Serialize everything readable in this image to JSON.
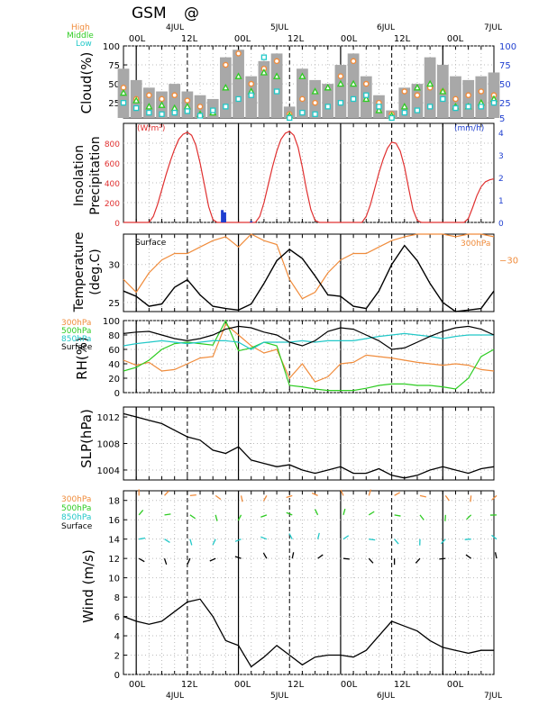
{
  "header": {
    "title": "GSM",
    "at_symbol": "@",
    "cloud_legend": [
      "High",
      "Middle",
      "Low"
    ],
    "rh_legend": [
      "300hPa",
      "500hPa",
      "850hPa",
      "Surface"
    ],
    "wind_legend": [
      "300hPa",
      "500hPa",
      "850hPa",
      "Surface"
    ]
  },
  "colors": {
    "high": "#f08c3c",
    "middle": "#2ecc22",
    "low": "#22c8c8",
    "surface": "#000000",
    "insolation": "#e03030",
    "precip": "#1f3fd0",
    "cloud_bar": "#a8a8a8"
  },
  "time_axis": {
    "hour_labels_top": [
      "00L",
      "12L",
      "00L",
      "12L",
      "00L",
      "12L",
      "00L"
    ],
    "hour_labels_bottom": [
      "00L",
      "12L",
      "00L",
      "12L",
      "00L",
      "12L",
      "00L"
    ],
    "day_labels_top": [
      "4JUL",
      "5JUL",
      "6JUL",
      "7JUL"
    ],
    "day_labels_bottom": [
      "4JUL",
      "5JUL",
      "6JUL",
      "7JUL"
    ],
    "range_hours": [
      -3,
      84
    ]
  },
  "chart_data": [
    {
      "id": "cloud",
      "type": "bar",
      "ylabel": "Cloud(%)",
      "ylim": [
        5,
        100
      ],
      "yticks_left": [
        25,
        50,
        75,
        100
      ],
      "yticks_right": [
        5,
        25,
        50,
        75,
        100
      ],
      "x": [
        -3,
        0,
        3,
        6,
        9,
        12,
        15,
        18,
        21,
        24,
        27,
        30,
        33,
        36,
        39,
        42,
        45,
        48,
        51,
        54,
        57,
        60,
        63,
        66,
        69,
        72,
        75,
        78,
        81,
        84
      ],
      "total": [
        70,
        55,
        45,
        40,
        50,
        40,
        35,
        30,
        85,
        95,
        60,
        80,
        90,
        20,
        70,
        55,
        50,
        75,
        90,
        60,
        35,
        15,
        45,
        50,
        85,
        75,
        60,
        55,
        60,
        65
      ],
      "series": [
        {
          "name": "High",
          "values": [
            45,
            30,
            35,
            30,
            35,
            28,
            20,
            15,
            75,
            90,
            50,
            70,
            80,
            10,
            30,
            25,
            20,
            60,
            80,
            50,
            25,
            10,
            40,
            35,
            45,
            40,
            30,
            35,
            40,
            35
          ]
        },
        {
          "name": "Middle",
          "values": [
            38,
            28,
            20,
            22,
            18,
            20,
            10,
            12,
            45,
            60,
            40,
            65,
            60,
            8,
            60,
            40,
            45,
            50,
            50,
            30,
            15,
            8,
            20,
            45,
            50,
            40,
            20,
            20,
            25,
            30
          ]
        },
        {
          "name": "Low",
          "values": [
            25,
            18,
            12,
            10,
            12,
            14,
            8,
            15,
            20,
            30,
            35,
            85,
            40,
            5,
            12,
            10,
            20,
            25,
            30,
            35,
            20,
            5,
            12,
            15,
            20,
            30,
            18,
            20,
            20,
            25
          ]
        }
      ]
    },
    {
      "id": "insolation",
      "type": "line",
      "ylabel": "Insolation\nPrecipitation",
      "unit_left": "(W/m²)",
      "unit_right": "(mm/h)",
      "ylim": [
        0,
        1000
      ],
      "yticks_left": [
        0,
        200,
        400,
        600,
        800
      ],
      "yticks_right": [
        0,
        1,
        2,
        3,
        4
      ],
      "ylim_right": [
        0,
        4.4
      ],
      "x": [
        -3,
        0,
        1,
        2,
        3,
        4,
        5,
        6,
        7,
        8,
        9,
        10,
        11,
        12,
        13,
        14,
        15,
        16,
        17,
        18,
        19,
        20,
        21,
        24,
        25,
        26,
        27,
        28,
        29,
        30,
        31,
        32,
        33,
        34,
        35,
        36,
        37,
        38,
        39,
        40,
        41,
        42,
        43,
        44,
        45,
        48,
        49,
        50,
        51,
        52,
        53,
        54,
        55,
        56,
        57,
        58,
        59,
        60,
        61,
        62,
        63,
        64,
        65,
        66,
        67,
        68,
        69,
        72,
        73,
        74,
        75,
        76,
        77,
        78,
        79,
        80,
        81,
        82,
        83,
        84
      ],
      "y": [
        0,
        0,
        0,
        0,
        0,
        60,
        180,
        330,
        480,
        620,
        740,
        840,
        890,
        910,
        880,
        780,
        600,
        380,
        160,
        30,
        0,
        0,
        0,
        0,
        0,
        0,
        0,
        0,
        60,
        200,
        380,
        560,
        720,
        840,
        900,
        920,
        880,
        760,
        560,
        330,
        130,
        20,
        0,
        0,
        0,
        0,
        0,
        0,
        0,
        0,
        0,
        60,
        180,
        340,
        500,
        640,
        750,
        810,
        800,
        720,
        560,
        340,
        130,
        20,
        0,
        0,
        0,
        0,
        0,
        0,
        0,
        0,
        0,
        40,
        150,
        270,
        360,
        410,
        430,
        440
      ],
      "precip": [
        {
          "x": 20.2,
          "mm": 0.55
        },
        {
          "x": 20.8,
          "mm": 0.45
        },
        {
          "x": 27,
          "mm": 0.05
        }
      ]
    },
    {
      "id": "temperature",
      "type": "line",
      "ylabel": "Temperature\n(deg.C)",
      "surface_label": "Surface",
      "label_300": "300hPa",
      "yticks_left": [
        25,
        30
      ],
      "ylim": [
        23.8,
        34
      ],
      "yticks_right": [
        -30
      ],
      "ylim_right": [
        -34,
        -28
      ],
      "series": [
        {
          "name": "Surface",
          "x": [
            -3,
            0,
            3,
            6,
            9,
            12,
            15,
            18,
            21,
            24,
            27,
            30,
            33,
            36,
            39,
            42,
            45,
            48,
            51,
            54,
            57,
            60,
            63,
            66,
            69,
            72,
            75,
            78,
            81,
            84
          ],
          "y": [
            26.5,
            25.8,
            24.5,
            24.8,
            27.0,
            28.0,
            26.0,
            24.5,
            24.2,
            24.0,
            24.8,
            27.5,
            30.5,
            32.0,
            30.8,
            28.5,
            26.0,
            25.8,
            24.5,
            24.2,
            26.5,
            30.0,
            32.5,
            30.5,
            27.5,
            25.0,
            23.8,
            24.0,
            24.2,
            26.5
          ]
        },
        {
          "name": "300hPa",
          "x": [
            -3,
            0,
            3,
            6,
            9,
            12,
            15,
            18,
            21,
            24,
            27,
            30,
            33,
            36,
            39,
            42,
            45,
            48,
            51,
            54,
            57,
            60,
            63,
            66,
            69,
            72,
            75,
            78,
            81,
            84
          ],
          "y": [
            -31.5,
            -32.5,
            -31.0,
            -30.0,
            -29.5,
            -29.5,
            -29.0,
            -28.5,
            -28.2,
            -29.0,
            -28.0,
            -28.5,
            -28.8,
            -31.5,
            -33.0,
            -32.5,
            -31.0,
            -30.0,
            -29.5,
            -29.5,
            -29.0,
            -28.5,
            -28.2,
            -28.0,
            -28.0,
            -28.0,
            -28.2,
            -28.0,
            -28.0,
            -28.2
          ]
        }
      ]
    },
    {
      "id": "rh",
      "type": "line",
      "ylabel": "RH(%)",
      "ylim": [
        0,
        100
      ],
      "yticks_left": [
        0,
        20,
        40,
        60,
        80,
        100
      ],
      "series": [
        {
          "name": "300hPa",
          "x": [
            -3,
            0,
            3,
            6,
            9,
            12,
            15,
            18,
            21,
            24,
            27,
            30,
            33,
            36,
            39,
            42,
            45,
            48,
            51,
            54,
            57,
            60,
            63,
            66,
            69,
            72,
            75,
            78,
            81,
            84
          ],
          "y": [
            45,
            38,
            42,
            30,
            32,
            40,
            48,
            50,
            95,
            80,
            65,
            55,
            60,
            20,
            40,
            15,
            22,
            40,
            42,
            52,
            50,
            48,
            45,
            42,
            40,
            38,
            40,
            38,
            32,
            30
          ]
        },
        {
          "name": "500hPa",
          "x": [
            -3,
            0,
            3,
            6,
            9,
            12,
            15,
            18,
            21,
            24,
            27,
            30,
            33,
            36,
            39,
            42,
            45,
            48,
            51,
            54,
            57,
            60,
            63,
            66,
            69,
            72,
            75,
            78,
            81,
            84
          ],
          "y": [
            30,
            35,
            45,
            60,
            68,
            70,
            68,
            66,
            100,
            58,
            62,
            70,
            65,
            10,
            8,
            5,
            3,
            3,
            3,
            6,
            10,
            12,
            12,
            10,
            10,
            8,
            5,
            20,
            50,
            60
          ]
        },
        {
          "name": "850hPa",
          "x": [
            -3,
            0,
            3,
            6,
            9,
            12,
            15,
            18,
            21,
            24,
            27,
            30,
            33,
            36,
            39,
            42,
            45,
            48,
            51,
            54,
            57,
            60,
            63,
            66,
            69,
            72,
            75,
            78,
            81,
            84
          ],
          "y": [
            65,
            68,
            70,
            72,
            70,
            68,
            70,
            72,
            72,
            70,
            60,
            70,
            70,
            70,
            72,
            70,
            72,
            72,
            72,
            75,
            78,
            80,
            82,
            80,
            78,
            75,
            78,
            80,
            80,
            80
          ]
        },
        {
          "name": "Surface",
          "x": [
            -3,
            0,
            3,
            6,
            9,
            12,
            15,
            18,
            21,
            24,
            27,
            30,
            33,
            36,
            39,
            42,
            45,
            48,
            51,
            54,
            57,
            60,
            63,
            66,
            69,
            72,
            75,
            78,
            81,
            84
          ],
          "y": [
            82,
            84,
            85,
            80,
            75,
            72,
            75,
            80,
            88,
            92,
            90,
            84,
            80,
            70,
            65,
            72,
            85,
            90,
            88,
            80,
            72,
            60,
            62,
            70,
            78,
            85,
            90,
            92,
            88,
            80
          ]
        }
      ]
    },
    {
      "id": "slp",
      "type": "line",
      "ylabel": "SLP(hPa)",
      "ylim": [
        1002.5,
        1013.5
      ],
      "yticks_left": [
        1004,
        1008,
        1012
      ],
      "x": [
        -3,
        0,
        3,
        6,
        9,
        12,
        15,
        18,
        21,
        24,
        27,
        30,
        33,
        36,
        39,
        42,
        45,
        48,
        51,
        54,
        57,
        60,
        63,
        66,
        69,
        72,
        75,
        78,
        81,
        84
      ],
      "y": [
        1012.5,
        1012.0,
        1011.5,
        1011.0,
        1010.0,
        1009.0,
        1008.5,
        1007.0,
        1006.5,
        1007.5,
        1005.5,
        1005.0,
        1004.5,
        1004.8,
        1004.0,
        1003.5,
        1004.0,
        1004.5,
        1003.5,
        1003.5,
        1004.2,
        1003.2,
        1002.8,
        1003.2,
        1004.0,
        1004.5,
        1004.0,
        1003.5,
        1004.2,
        1004.5
      ]
    },
    {
      "id": "wind",
      "type": "line",
      "ylabel": "Wind (m/s)",
      "ylim": [
        0,
        19
      ],
      "yticks_left": [
        0,
        2,
        4,
        6,
        8,
        10,
        12,
        14,
        16,
        18
      ],
      "x": [
        -3,
        0,
        3,
        6,
        9,
        12,
        15,
        18,
        21,
        24,
        27,
        30,
        33,
        36,
        39,
        42,
        45,
        48,
        51,
        54,
        57,
        60,
        63,
        66,
        69,
        72,
        75,
        78,
        81,
        84
      ],
      "y": [
        6.0,
        5.5,
        5.2,
        5.5,
        6.5,
        7.5,
        7.8,
        6.0,
        3.5,
        3.0,
        0.8,
        1.8,
        3.0,
        2.0,
        1.0,
        1.8,
        2.0,
        2.0,
        1.8,
        2.5,
        4.0,
        5.5,
        5.0,
        4.5,
        3.5,
        2.8,
        2.5,
        2.2,
        2.5,
        2.5
      ],
      "barb_hours": [
        3,
        15,
        27,
        39,
        51,
        63,
        75
      ],
      "barb_levels": [
        {
          "name": "300hPa",
          "y": 18.5
        },
        {
          "name": "500hPa",
          "y": 16.5
        },
        {
          "name": "850hPa",
          "y": 14.0
        },
        {
          "name": "Surface",
          "y": 12.0
        }
      ]
    }
  ]
}
